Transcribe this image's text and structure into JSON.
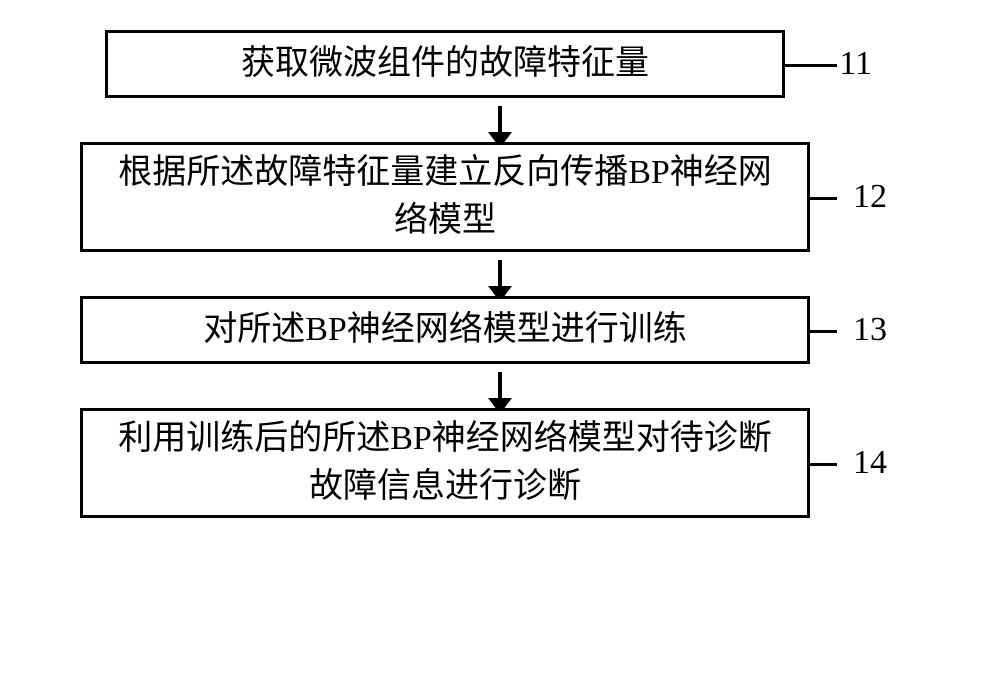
{
  "flowchart": {
    "type": "flowchart",
    "background_color": "#ffffff",
    "border_color": "#000000",
    "border_width": 3,
    "arrow_color": "#000000",
    "text_color": "#000000",
    "font_size": 34,
    "steps": [
      {
        "id": "step1",
        "text": "获取微波组件的故障特征量",
        "label": "11"
      },
      {
        "id": "step2",
        "text": "根据所述故障特征量建立反向传播BP神经网络模型",
        "label": "12"
      },
      {
        "id": "step3",
        "text": "对所述BP神经网络模型进行训练",
        "label": "13"
      },
      {
        "id": "step4",
        "text": "利用训练后的所述BP神经网络模型对待诊断故障信息进行诊断",
        "label": "14"
      }
    ]
  }
}
